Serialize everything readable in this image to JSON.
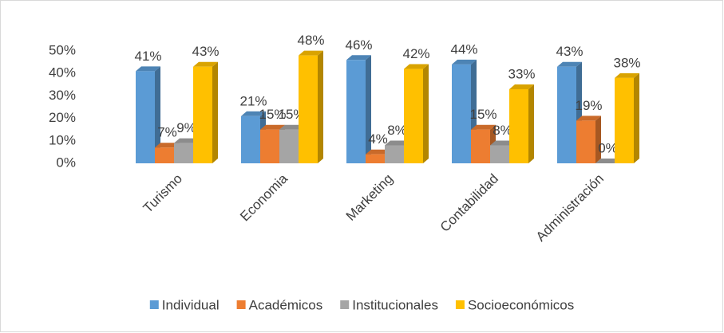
{
  "chart_data": {
    "type": "bar3d",
    "categories": [
      "Turismo",
      "Economia",
      "Marketing",
      "Contabilidad",
      "Administración"
    ],
    "series": [
      {
        "name": "Individual",
        "color": "#5b9bd5",
        "values": [
          41,
          21,
          46,
          44,
          43
        ],
        "value_labels": [
          "41%",
          "21%",
          "46%",
          "44%",
          "43%"
        ]
      },
      {
        "name": "Académicos",
        "color": "#ed7d31",
        "values": [
          7,
          15,
          4,
          15,
          19
        ],
        "value_labels": [
          "7%",
          "15%",
          "4%",
          "15%",
          "19%"
        ]
      },
      {
        "name": "Institucionales",
        "color": "#a5a5a5",
        "values": [
          9,
          15,
          8,
          8,
          0
        ],
        "value_labels": [
          "9%",
          "15%",
          "8%",
          "8%",
          "0%"
        ]
      },
      {
        "name": "Socioeconómicos",
        "color": "#ffc000",
        "values": [
          43,
          48,
          42,
          33,
          38
        ],
        "value_labels": [
          "43%",
          "48%",
          "42%",
          "33%",
          "38%"
        ]
      }
    ],
    "ylim": [
      0,
      50
    ],
    "yticks": [
      {
        "value": 0,
        "label": "0%"
      },
      {
        "value": 10,
        "label": "10%"
      },
      {
        "value": 20,
        "label": "20%"
      },
      {
        "value": 30,
        "label": "30%"
      },
      {
        "value": 40,
        "label": "40%"
      },
      {
        "value": 50,
        "label": "50%"
      }
    ],
    "legend": "bottom"
  }
}
